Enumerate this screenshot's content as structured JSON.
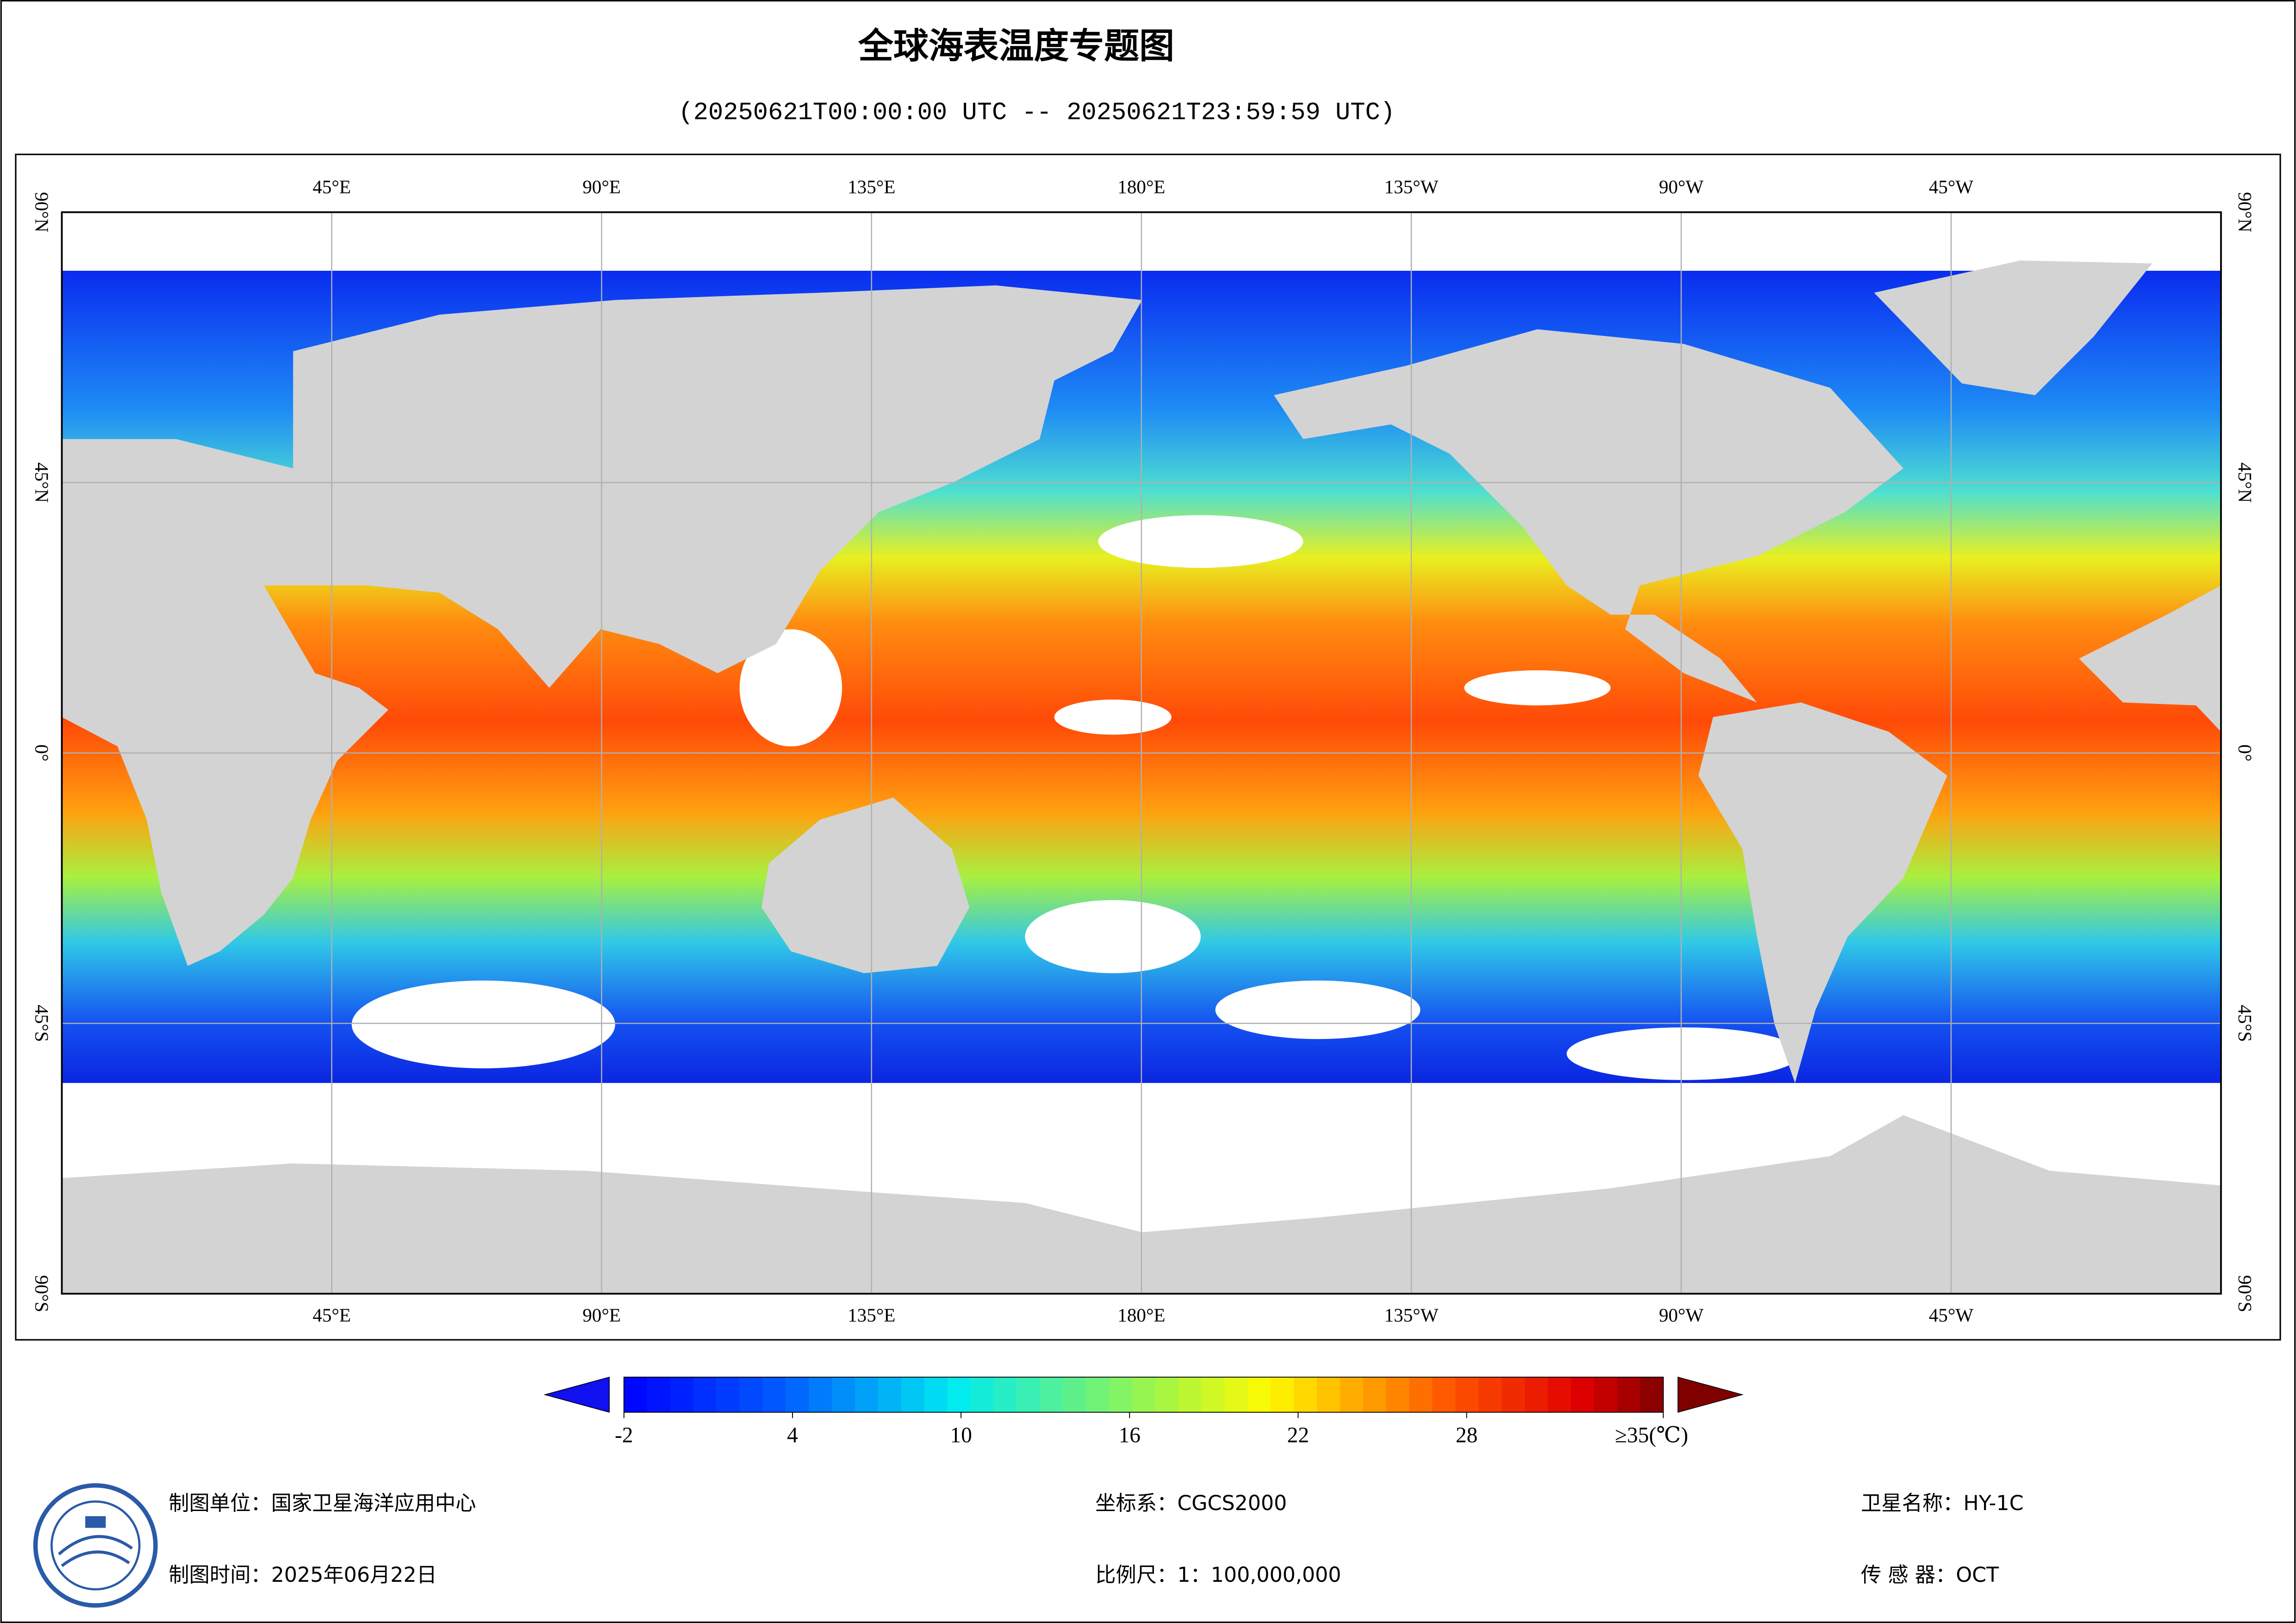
{
  "header": {
    "title": "全球海表温度专题图",
    "subtitle": "(20250621T00:00:00 UTC -- 20250621T23:59:59 UTC)"
  },
  "map": {
    "lon_ticks": [
      {
        "value": 45,
        "label": "45°E"
      },
      {
        "value": 90,
        "label": "90°E"
      },
      {
        "value": 135,
        "label": "135°E"
      },
      {
        "value": 180,
        "label": "180°E"
      },
      {
        "value": 225,
        "label": "135°W"
      },
      {
        "value": 270,
        "label": "90°W"
      },
      {
        "value": 315,
        "label": "45°W"
      }
    ],
    "lat_ticks": [
      {
        "value": 90,
        "label": "90°N"
      },
      {
        "value": 45,
        "label": "45°N"
      },
      {
        "value": 0,
        "label": "0°"
      },
      {
        "value": -45,
        "label": "45°S"
      },
      {
        "value": -90,
        "label": "90°S"
      }
    ]
  },
  "colorbar": {
    "lim": [
      -2,
      35
    ],
    "ticks": [
      -2,
      4,
      10,
      16,
      22,
      28,
      {
        "value": 35,
        "label": "≥35(℃)"
      }
    ]
  },
  "footer": {
    "unit": "制图单位：国家卫星海洋应用中心",
    "time": "制图时间：2025年06月22日",
    "crs": "坐标系：CGCS2000",
    "scale": "比例尺：1：100,000,000",
    "satellite": "卫星名称：HY-1C",
    "sensor": "传 感 器：OCT"
  }
}
